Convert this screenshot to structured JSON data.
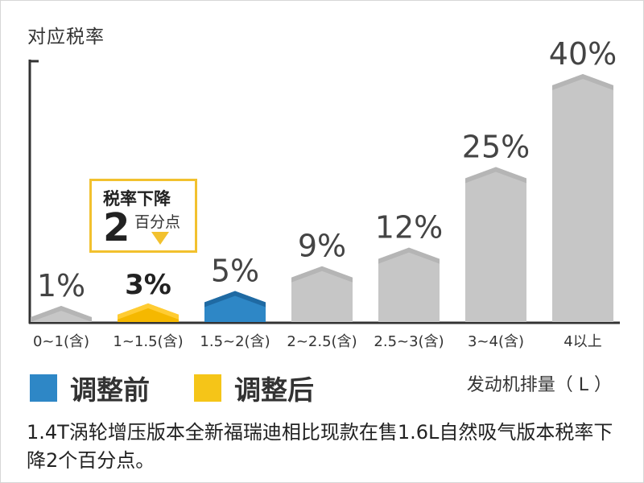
{
  "chart_data": {
    "type": "bar",
    "ylabel": "对应税率",
    "xlabel": "发动机排量（ L ）",
    "categories": [
      "0~1(含)",
      "1~1.5(含)",
      "1.5~2(含)",
      "2~2.5(含)",
      "2.5~3(含)",
      "3~4(含)",
      "4以上"
    ],
    "values": [
      1,
      3,
      5,
      9,
      12,
      25,
      40
    ],
    "value_labels": [
      "1%",
      "3%",
      "5%",
      "9%",
      "12%",
      "25%",
      "40%"
    ],
    "ylim": [
      0,
      40
    ],
    "grid": false,
    "bar_groups": [
      "gray",
      "yellow",
      "blue",
      "gray",
      "gray",
      "gray",
      "gray"
    ],
    "colors": {
      "gray": "#c6c6c6",
      "gray_cap": "#b5b5b5",
      "yellow": "#f5b800",
      "yellow_cap": "#ffcc33",
      "blue": "#2e87c6",
      "blue_cap": "#1f6aa3",
      "axis": "#333333"
    },
    "legend": [
      {
        "label": "调整前",
        "color": "#2e87c6"
      },
      {
        "label": "调整后",
        "color": "#f5c518"
      }
    ],
    "annotation": {
      "title": "税率下降",
      "number": "2",
      "unit": "百分点",
      "color": "#f2c12e"
    }
  },
  "caption": "1.4T涡轮增压版本全新福瑞迪相比现款在售1.6L自然吸气版本税率下降2个百分点。"
}
